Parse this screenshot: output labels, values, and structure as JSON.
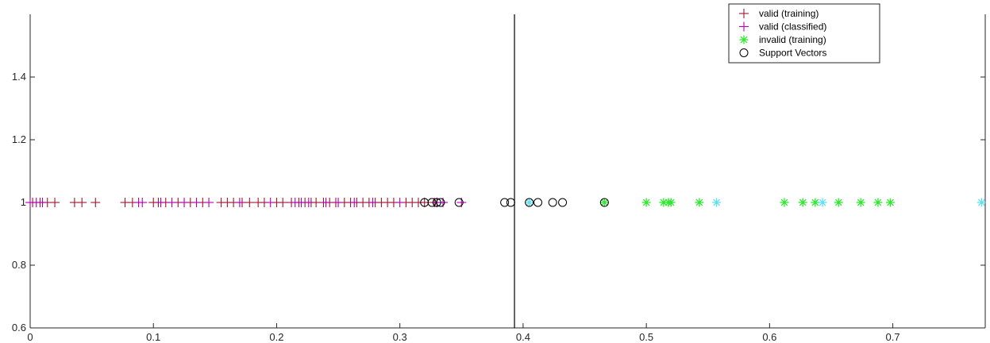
{
  "chart_data": {
    "type": "scatter",
    "title": "",
    "xlabel": "",
    "ylabel": "",
    "xlim": [
      0,
      0.775
    ],
    "ylim": [
      0.6,
      1.6
    ],
    "xticks": [
      0,
      0.1,
      0.2,
      0.3,
      0.4,
      0.5,
      0.6,
      0.7
    ],
    "xtick_labels": [
      "0",
      "0.1",
      "0.2",
      "0.3",
      "0.4",
      "0.5",
      "0.6",
      "0.7"
    ],
    "yticks": [
      0.6,
      0.8,
      1,
      1.2,
      1.4
    ],
    "ytick_labels": [
      "0.6",
      "0.8",
      "1",
      "1.2",
      "1.4"
    ],
    "grid": false,
    "legend_position": "top-right",
    "decision_boundary_x": 0.393,
    "series": [
      {
        "name": "valid (training)",
        "marker": "+",
        "color": "#a2142f",
        "x": [
          0.002,
          0.008,
          0.014,
          0.02,
          0.036,
          0.042,
          0.053,
          0.077,
          0.083,
          0.1,
          0.104,
          0.11,
          0.12,
          0.13,
          0.14,
          0.155,
          0.16,
          0.165,
          0.172,
          0.178,
          0.185,
          0.19,
          0.2,
          0.205,
          0.212,
          0.218,
          0.223,
          0.228,
          0.232,
          0.238,
          0.243,
          0.248,
          0.255,
          0.26,
          0.265,
          0.27,
          0.275,
          0.28,
          0.285,
          0.29,
          0.295,
          0.305,
          0.31,
          0.315,
          0.32,
          0.328
        ],
        "y": [
          1,
          1,
          1,
          1,
          1,
          1,
          1,
          1,
          1,
          1,
          1,
          1,
          1,
          1,
          1,
          1,
          1,
          1,
          1,
          1,
          1,
          1,
          1,
          1,
          1,
          1,
          1,
          1,
          1,
          1,
          1,
          1,
          1,
          1,
          1,
          1,
          1,
          1,
          1,
          1,
          1,
          1,
          1,
          1,
          1,
          1
        ]
      },
      {
        "name": "valid (classified)",
        "marker": "+",
        "color": "#b000b0",
        "x": [
          0.0,
          0.005,
          0.01,
          0.088,
          0.091,
          0.106,
          0.115,
          0.125,
          0.135,
          0.145,
          0.17,
          0.195,
          0.215,
          0.22,
          0.226,
          0.24,
          0.25,
          0.263,
          0.278,
          0.3,
          0.33,
          0.335,
          0.35
        ],
        "y": [
          1,
          1,
          1,
          1,
          1,
          1,
          1,
          1,
          1,
          1,
          1,
          1,
          1,
          1,
          1,
          1,
          1,
          1,
          1,
          1,
          1,
          1,
          1
        ]
      },
      {
        "name": "invalid (training)",
        "marker": "*",
        "color": "#2ee82e",
        "x": [
          0.466,
          0.5,
          0.514,
          0.518,
          0.52,
          0.543,
          0.612,
          0.627,
          0.637,
          0.656,
          0.674,
          0.688,
          0.698
        ],
        "y": [
          1,
          1,
          1,
          1,
          1,
          1,
          1,
          1,
          1,
          1,
          1,
          1,
          1
        ]
      },
      {
        "name": "",
        "marker": "*",
        "color": "#5ee0f2",
        "x": [
          0.405,
          0.557,
          0.643,
          0.772
        ],
        "y": [
          1,
          1,
          1,
          1
        ]
      },
      {
        "name": "Support Vectors",
        "marker": "o",
        "color": "#000000",
        "x": [
          0.32,
          0.326,
          0.33,
          0.333,
          0.348,
          0.385,
          0.39,
          0.405,
          0.412,
          0.424,
          0.432,
          0.466
        ],
        "y": [
          1,
          1,
          1,
          1,
          1,
          1,
          1,
          1,
          1,
          1,
          1,
          1
        ]
      }
    ]
  }
}
